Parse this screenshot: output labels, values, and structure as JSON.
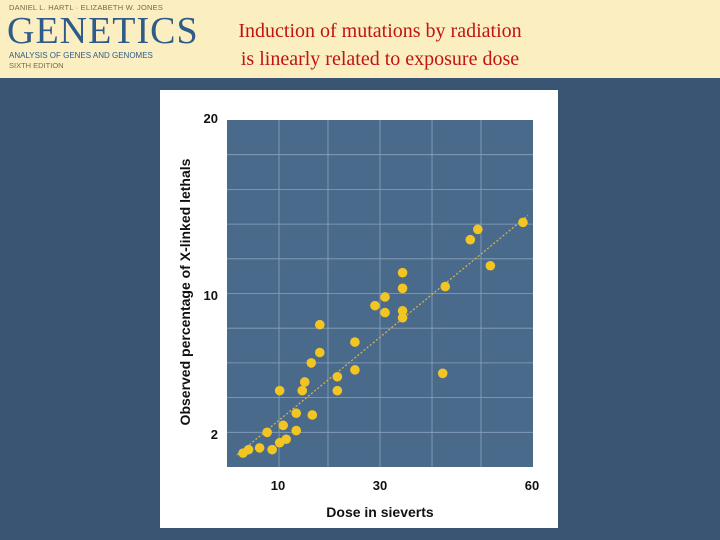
{
  "logo": {
    "authors": "DANIEL L. HARTL · ELIZABETH W. JONES",
    "brand": "GENETICS",
    "subtitle": "ANALYSIS OF GENES AND GENOMES",
    "edition": "SIXTH EDITION"
  },
  "slide": {
    "title_line1": "Induction of mutations by radiation",
    "title_line2": "is linearly related to exposure dose"
  },
  "colors": {
    "background": "#3a5573",
    "header": "#fbeec0",
    "title": "#c21313",
    "plot_area": "#4a6a8c",
    "points": "#f2c522",
    "trend_line": "#d9b74a"
  },
  "chart_data": {
    "type": "scatter",
    "xlabel": "Dose in sieverts",
    "ylabel": "Observed percentage of X-linked lethals",
    "x_ticks": [
      "10",
      "30",
      "60"
    ],
    "y_ticks": [
      "2",
      "10",
      "20"
    ],
    "xlim": [
      0,
      61
    ],
    "ylim": [
      0,
      20
    ],
    "grid": true,
    "trend_line": {
      "x": [
        2,
        60
      ],
      "y": [
        0.7,
        14.5
      ]
    },
    "points": [
      {
        "x": 3.2,
        "y": 0.8
      },
      {
        "x": 4.3,
        "y": 1.0
      },
      {
        "x": 6.5,
        "y": 1.1
      },
      {
        "x": 9.0,
        "y": 1.0
      },
      {
        "x": 8.0,
        "y": 2.0
      },
      {
        "x": 10.5,
        "y": 1.4
      },
      {
        "x": 11.2,
        "y": 2.4
      },
      {
        "x": 11.8,
        "y": 1.6
      },
      {
        "x": 13.8,
        "y": 2.1
      },
      {
        "x": 13.8,
        "y": 3.1
      },
      {
        "x": 10.5,
        "y": 4.4
      },
      {
        "x": 15.0,
        "y": 4.4
      },
      {
        "x": 15.5,
        "y": 4.9
      },
      {
        "x": 17.0,
        "y": 3.0
      },
      {
        "x": 16.8,
        "y": 6.0
      },
      {
        "x": 18.5,
        "y": 6.6
      },
      {
        "x": 22.0,
        "y": 4.4
      },
      {
        "x": 22.0,
        "y": 5.2
      },
      {
        "x": 25.5,
        "y": 7.2
      },
      {
        "x": 25.5,
        "y": 5.6
      },
      {
        "x": 18.5,
        "y": 8.2
      },
      {
        "x": 29.5,
        "y": 9.3
      },
      {
        "x": 31.5,
        "y": 8.9
      },
      {
        "x": 31.5,
        "y": 9.8
      },
      {
        "x": 35.0,
        "y": 10.3
      },
      {
        "x": 35.0,
        "y": 11.2
      },
      {
        "x": 35.0,
        "y": 9.0
      },
      {
        "x": 35.0,
        "y": 8.6
      },
      {
        "x": 43.0,
        "y": 5.4
      },
      {
        "x": 43.5,
        "y": 10.4
      },
      {
        "x": 48.5,
        "y": 13.1
      },
      {
        "x": 50.0,
        "y": 13.7
      },
      {
        "x": 52.5,
        "y": 11.6
      },
      {
        "x": 59.0,
        "y": 14.1
      }
    ]
  }
}
